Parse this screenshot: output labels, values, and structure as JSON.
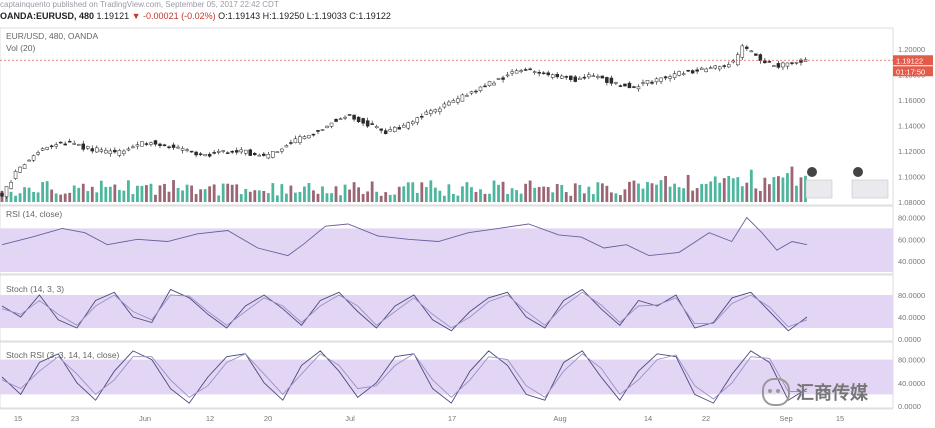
{
  "header": {
    "author": "captainquento",
    "published_text": "published on TradingView.com, September 05, 2017 22:42 CDT",
    "symbol": "OANDA:EURUSD, 480",
    "last": "1.19121",
    "change": "-0.00021 (-0.02%)",
    "open": "O:1.19143",
    "high": "H:1.19250",
    "low": "L:1.19033",
    "close": "C:1.19122"
  },
  "watermark": "汇商传媒",
  "chart_data": [
    {
      "type": "candlestick",
      "name": "main",
      "title": "EUR/USD, 480, OANDA",
      "overlay": "Vol (20)",
      "ylim": [
        1.08,
        1.21
      ],
      "yticks": [
        "1.20000",
        "1.18000",
        "1.16000",
        "1.14000",
        "1.12000",
        "1.10000",
        "1.08000"
      ],
      "price_labels": [
        "1.19122",
        "01:17:50"
      ],
      "close_path": [
        [
          0,
          1.085
        ],
        [
          10,
          1.105
        ],
        [
          22,
          1.118
        ],
        [
          33,
          1.125
        ],
        [
          45,
          1.126
        ],
        [
          55,
          1.122
        ],
        [
          66,
          1.12
        ],
        [
          75,
          1.118
        ],
        [
          86,
          1.122
        ],
        [
          96,
          1.127
        ],
        [
          110,
          1.124
        ],
        [
          124,
          1.12
        ],
        [
          136,
          1.117
        ],
        [
          150,
          1.12
        ],
        [
          162,
          1.119
        ],
        [
          176,
          1.116
        ],
        [
          190,
          1.126
        ],
        [
          202,
          1.131
        ],
        [
          212,
          1.138
        ],
        [
          222,
          1.145
        ],
        [
          232,
          1.148
        ],
        [
          242,
          1.141
        ],
        [
          254,
          1.135
        ],
        [
          266,
          1.138
        ],
        [
          276,
          1.146
        ],
        [
          288,
          1.152
        ],
        [
          298,
          1.158
        ],
        [
          308,
          1.163
        ],
        [
          318,
          1.17
        ],
        [
          330,
          1.176
        ],
        [
          340,
          1.181
        ],
        [
          350,
          1.184
        ],
        [
          360,
          1.18
        ],
        [
          372,
          1.178
        ],
        [
          380,
          1.176
        ],
        [
          390,
          1.178
        ],
        [
          400,
          1.176
        ],
        [
          410,
          1.172
        ],
        [
          420,
          1.17
        ],
        [
          430,
          1.174
        ],
        [
          440,
          1.178
        ],
        [
          452,
          1.181
        ],
        [
          462,
          1.183
        ],
        [
          474,
          1.186
        ],
        [
          486,
          1.189
        ],
        [
          492,
          1.201
        ],
        [
          500,
          1.197
        ],
        [
          506,
          1.19
        ],
        [
          515,
          1.186
        ],
        [
          524,
          1.19
        ],
        [
          534,
          1.191
        ]
      ],
      "bar_count": 535
    },
    {
      "type": "volume",
      "name": "Vol (20)",
      "series": [
        {
          "name": "up",
          "color": "#2fa98d"
        },
        {
          "name": "down",
          "color": "#8a4a5c"
        }
      ]
    },
    {
      "type": "line",
      "name": "rsi",
      "title": "RSI (14, close)",
      "ylim": [
        30,
        85
      ],
      "yticks": [
        "80.0000",
        "60.0000",
        "40.0000"
      ],
      "band": [
        30,
        70
      ],
      "x": [
        0,
        20,
        40,
        55,
        70,
        90,
        110,
        130,
        150,
        170,
        190,
        200,
        215,
        230,
        250,
        270,
        290,
        310,
        330,
        350,
        370,
        385,
        400,
        415,
        430,
        450,
        470,
        485,
        495,
        505,
        515,
        525,
        535
      ],
      "values": [
        55,
        62,
        70,
        66,
        55,
        60,
        58,
        65,
        68,
        52,
        45,
        55,
        72,
        74,
        63,
        60,
        58,
        66,
        70,
        74,
        64,
        62,
        52,
        55,
        45,
        48,
        66,
        58,
        80,
        66,
        50,
        58,
        55
      ]
    },
    {
      "type": "line",
      "name": "stoch",
      "title": "Stoch (14, 3, 3)",
      "ylim": [
        0,
        100
      ],
      "yticks": [
        "80.0000",
        "40.0000",
        "0.0000"
      ],
      "band": [
        20,
        80
      ],
      "series": [
        {
          "values": [
            60,
            40,
            80,
            35,
            20,
            70,
            85,
            40,
            30,
            90,
            75,
            45,
            20,
            60,
            80,
            55,
            25,
            70,
            85,
            50,
            20,
            60,
            80,
            35,
            15,
            50,
            75,
            85,
            40,
            20,
            70,
            90,
            55,
            25,
            70,
            60,
            80,
            20,
            30,
            75,
            85,
            50,
            15,
            40
          ]
        },
        {
          "values": [
            55,
            45,
            70,
            45,
            25,
            60,
            80,
            50,
            35,
            80,
            78,
            50,
            25,
            50,
            75,
            60,
            30,
            60,
            80,
            60,
            25,
            50,
            75,
            45,
            20,
            40,
            68,
            80,
            50,
            25,
            60,
            85,
            62,
            30,
            60,
            62,
            75,
            28,
            28,
            65,
            80,
            58,
            22,
            35
          ]
        }
      ]
    },
    {
      "type": "line",
      "name": "stochrsi",
      "title": "Stoch RSI (3, 3, 14, 14, close)",
      "ylim": [
        0,
        100
      ],
      "yticks": [
        "80.0000",
        "40.0000",
        "0.0000"
      ],
      "band": [
        20,
        80
      ],
      "series": [
        {
          "values": [
            50,
            20,
            75,
            90,
            40,
            10,
            60,
            95,
            80,
            30,
            5,
            50,
            85,
            90,
            40,
            10,
            70,
            95,
            60,
            15,
            40,
            85,
            90,
            30,
            5,
            60,
            95,
            70,
            20,
            10,
            75,
            95,
            50,
            10,
            60,
            90,
            85,
            20,
            5,
            55,
            95,
            75,
            10,
            30
          ]
        },
        {
          "values": [
            45,
            30,
            60,
            85,
            55,
            20,
            45,
            85,
            85,
            45,
            15,
            35,
            75,
            90,
            55,
            20,
            55,
            90,
            70,
            30,
            35,
            70,
            90,
            45,
            15,
            45,
            85,
            80,
            35,
            15,
            60,
            90,
            65,
            20,
            45,
            80,
            88,
            35,
            12,
            40,
            85,
            82,
            25,
            25
          ]
        }
      ]
    },
    {
      "type": "axis",
      "name": "time-axis",
      "x_ticks": [
        "15",
        "23",
        "Jun",
        "12",
        "20",
        "Jul",
        "17",
        "Aug",
        "14",
        "22",
        "Sep",
        "15"
      ],
      "x_tick_positions": [
        18,
        75,
        145,
        210,
        268,
        350,
        452,
        560,
        648,
        706,
        786,
        840
      ]
    }
  ],
  "colors": {
    "accent": "#7a70c0",
    "band": "#e3d6f5",
    "candle": "#2a2a2a",
    "price_tag": "#e35b4a"
  }
}
